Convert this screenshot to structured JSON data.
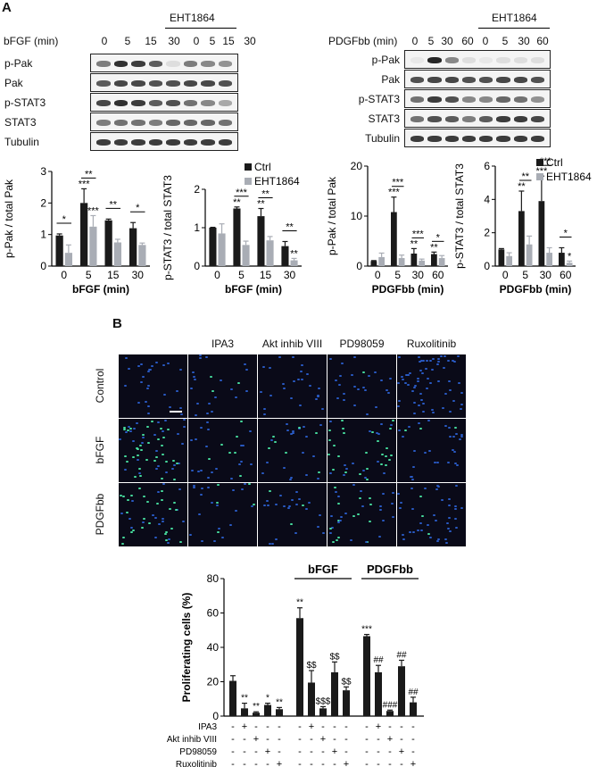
{
  "panel_a_label": "A",
  "panel_b_label": "B",
  "left": {
    "inhibitor": "EHT1864",
    "time_label": "bFGF (min)",
    "times": [
      "0",
      "5",
      "15",
      "30",
      "0",
      "5",
      "15",
      "30"
    ],
    "rows": [
      "p-Pak",
      "Pak",
      "p-STAT3",
      "STAT3",
      "Tubulin"
    ]
  },
  "right": {
    "inhibitor": "EHT1864",
    "time_label": "PDGFbb (min)",
    "times": [
      "0",
      "5",
      "30",
      "60",
      "0",
      "5",
      "30",
      "60"
    ],
    "rows": [
      "p-Pak",
      "Pak",
      "p-STAT3",
      "STAT3",
      "Tubulin"
    ]
  },
  "legend": {
    "ctrl": "Ctrl",
    "inh": "EHT1864",
    "ctrl_color": "#1a1a1a",
    "inh_color": "#a9adb5"
  },
  "panel_b": {
    "col_labels": [
      "IPA3",
      "Akt inhib VIII",
      "PD98059",
      "Ruxolitinib"
    ],
    "row_labels": [
      "Control",
      "bFGF",
      "PDGFbb"
    ]
  },
  "chart_data": [
    {
      "type": "bar",
      "ylabel": "p-Pak / total Pak",
      "xlabel": "bFGF (min)",
      "categories": [
        "0",
        "5",
        "15",
        "30"
      ],
      "ylim": [
        0,
        3
      ],
      "yticks": [
        "0",
        "1",
        "2",
        "3"
      ],
      "series": [
        {
          "name": "Ctrl",
          "values": [
            0.97,
            2.0,
            1.45,
            1.2
          ],
          "err": [
            0.05,
            0.45,
            0.04,
            0.18
          ]
        },
        {
          "name": "EHT1864",
          "values": [
            0.42,
            1.25,
            0.75,
            0.67
          ],
          "err": [
            0.25,
            0.35,
            0.1,
            0.06
          ]
        }
      ],
      "annotations": [
        {
          "pair": 0,
          "text": "*"
        },
        {
          "pair": 1,
          "text": "**"
        },
        {
          "pair": 2,
          "text": "**"
        },
        {
          "pair": 3,
          "text": "*"
        }
      ],
      "bar_labels": [
        {
          "series": 0,
          "index": 1,
          "text": "***"
        },
        {
          "series": 1,
          "index": 1,
          "text": "***"
        }
      ]
    },
    {
      "type": "bar",
      "ylabel": "p-STAT3 / total STAT3",
      "xlabel": "bFGF (min)",
      "categories": [
        "0",
        "5",
        "15",
        "30"
      ],
      "ylim": [
        0,
        2
      ],
      "yticks": [
        "0",
        "1",
        "2"
      ],
      "series": [
        {
          "name": "Ctrl",
          "values": [
            1.0,
            1.5,
            1.3,
            0.52
          ],
          "err": [
            0.01,
            0.04,
            0.2,
            0.12
          ]
        },
        {
          "name": "EHT1864",
          "values": [
            0.85,
            0.55,
            0.67,
            0.15
          ],
          "err": [
            0.25,
            0.1,
            0.1,
            0.05
          ]
        }
      ],
      "annotations": [
        {
          "pair": 1,
          "text": "***"
        },
        {
          "pair": 2,
          "text": "**"
        },
        {
          "pair": 3,
          "text": "**"
        }
      ],
      "bar_labels": [
        {
          "series": 0,
          "index": 1,
          "text": "**"
        },
        {
          "series": 0,
          "index": 2,
          "text": "**"
        },
        {
          "series": 1,
          "index": 3,
          "text": "**"
        }
      ]
    },
    {
      "type": "bar",
      "ylabel": "p-Pak / total Pak",
      "xlabel": "PDGFbb (min)",
      "categories": [
        "0",
        "5",
        "30",
        "60"
      ],
      "ylim": [
        0,
        20
      ],
      "yticks": [
        "0",
        "10",
        "20"
      ],
      "series": [
        {
          "name": "Ctrl",
          "values": [
            1.0,
            10.8,
            2.5,
            2.4
          ],
          "err": [
            0.1,
            3.0,
            1.0,
            0.4
          ]
        },
        {
          "name": "EHT1864",
          "values": [
            1.8,
            1.6,
            1.1,
            1.6
          ],
          "err": [
            0.8,
            0.6,
            0.3,
            0.5
          ]
        }
      ],
      "annotations": [
        {
          "pair": 1,
          "text": "***"
        },
        {
          "pair": 2,
          "text": "***"
        },
        {
          "pair": 3,
          "text": "*"
        }
      ],
      "bar_labels": [
        {
          "series": 0,
          "index": 1,
          "text": "***"
        },
        {
          "series": 0,
          "index": 2,
          "text": "**"
        },
        {
          "series": 0,
          "index": 3,
          "text": "**"
        }
      ]
    },
    {
      "type": "bar",
      "ylabel": "p-STAT3 / total STAT3",
      "xlabel": "PDGFbb (min)",
      "categories": [
        "0",
        "5",
        "30",
        "60"
      ],
      "ylim": [
        0,
        6
      ],
      "yticks": [
        "0",
        "2",
        "4",
        "6"
      ],
      "series": [
        {
          "name": "Ctrl",
          "values": [
            1.0,
            3.3,
            3.9,
            0.8
          ],
          "err": [
            0.05,
            1.2,
            1.5,
            0.3
          ]
        },
        {
          "name": "EHT1864",
          "values": [
            0.6,
            1.3,
            0.8,
            0.2
          ],
          "err": [
            0.2,
            0.5,
            0.3,
            0.1
          ]
        }
      ],
      "annotations": [
        {
          "pair": 1,
          "text": "**"
        },
        {
          "pair": 2,
          "text": "***"
        },
        {
          "pair": 3,
          "text": "*"
        }
      ],
      "bar_labels": [
        {
          "series": 0,
          "index": 1,
          "text": "**"
        },
        {
          "series": 0,
          "index": 2,
          "text": "***"
        },
        {
          "series": 1,
          "index": 3,
          "text": "*"
        }
      ]
    },
    {
      "type": "bar",
      "ylabel": "Proliferating cells (%)",
      "ylim": [
        0,
        80
      ],
      "yticks": [
        "0",
        "20",
        "40",
        "60",
        "80"
      ],
      "group_labels": [
        "bFGF",
        "PDGFbb"
      ],
      "values": [
        20.5,
        4.5,
        2.0,
        6.5,
        4.0,
        57.0,
        19.5,
        4.5,
        25.5,
        15.0,
        46.5,
        25.5,
        3.0,
        29.0,
        8.0
      ],
      "err": [
        3.0,
        3.0,
        0.5,
        1.0,
        1.0,
        6.0,
        7.0,
        1.0,
        6.0,
        2.0,
        1.0,
        4.0,
        0.5,
        3.5,
        3.0
      ],
      "labels": [
        "",
        "**",
        "**",
        "*",
        "**",
        "**",
        "$$",
        "$$$",
        "$$",
        "$$",
        "***",
        "##",
        "###",
        "##",
        "##"
      ],
      "treatment_rows": [
        {
          "name": "IPA3",
          "signs": [
            "-",
            "+",
            "-",
            "-",
            "-",
            "-",
            "+",
            "-",
            "-",
            "-",
            "-",
            "+",
            "-",
            "-",
            "-"
          ]
        },
        {
          "name": "Akt inhib VIII",
          "signs": [
            "-",
            "-",
            "+",
            "-",
            "-",
            "-",
            "-",
            "+",
            "-",
            "-",
            "-",
            "-",
            "+",
            "-",
            "-"
          ]
        },
        {
          "name": "PD98059",
          "signs": [
            "-",
            "-",
            "-",
            "+",
            "-",
            "-",
            "-",
            "-",
            "+",
            "-",
            "-",
            "-",
            "-",
            "+",
            "-"
          ]
        },
        {
          "name": "Ruxolitinib",
          "signs": [
            "-",
            "-",
            "-",
            "-",
            "+",
            "-",
            "-",
            "-",
            "-",
            "+",
            "-",
            "-",
            "-",
            "-",
            "+"
          ]
        }
      ]
    }
  ]
}
